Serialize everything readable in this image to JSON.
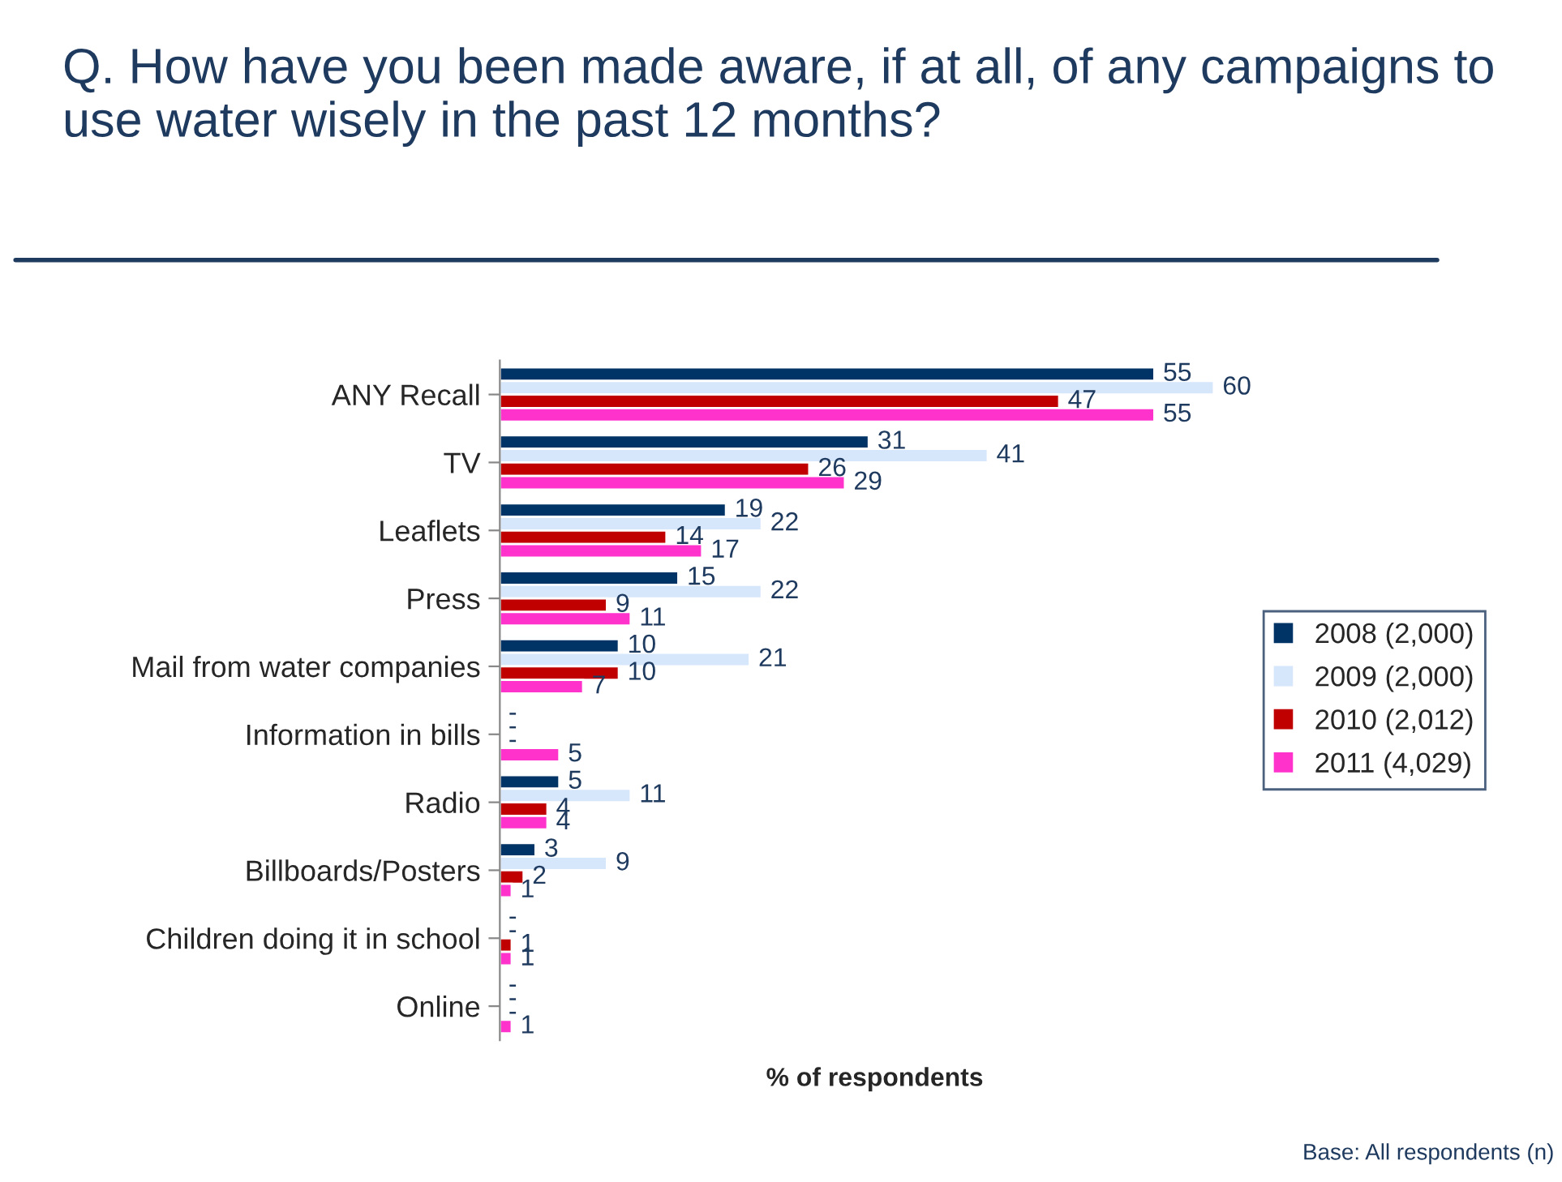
{
  "chart_data": {
    "type": "bar",
    "orientation": "horizontal",
    "title": "Q. How have you been made aware, if at all, of any campaigns to use water wisely in the past 12 months?",
    "xlabel": "% of respondents",
    "categories": [
      "ANY Recall",
      "TV",
      "Leaflets",
      "Press",
      "Mail from water companies",
      "Information in bills",
      "Radio",
      "Billboards/Posters",
      "Children doing it in school",
      "Online"
    ],
    "series": [
      {
        "name": "2008 (2,000)",
        "color": "#003366",
        "values": [
          55,
          31,
          19,
          15,
          10,
          null,
          5,
          3,
          null,
          null
        ],
        "value_labels": [
          "55",
          "31",
          "19",
          "15",
          "10",
          "-",
          "5",
          "3",
          "-",
          "-"
        ]
      },
      {
        "name": "2009 (2,000)",
        "color": "#d6e6fb",
        "values": [
          60,
          41,
          22,
          22,
          21,
          null,
          11,
          9,
          null,
          null
        ],
        "value_labels": [
          "60",
          "41",
          "22",
          "22",
          "21",
          "-",
          "11",
          "9",
          "-",
          "-"
        ]
      },
      {
        "name": "2010 (2,012)",
        "color": "#c00000",
        "values": [
          47,
          26,
          14,
          9,
          10,
          null,
          4,
          2,
          1,
          null
        ],
        "value_labels": [
          "47",
          "26",
          "14",
          "9",
          "10",
          "-",
          "4",
          "2",
          "1",
          "-"
        ]
      },
      {
        "name": "2011 (4,029)",
        "color": "#ff33cc",
        "values": [
          55,
          29,
          17,
          11,
          7,
          5,
          4,
          1,
          1,
          1
        ],
        "value_labels": [
          "55",
          "29",
          "17",
          "11",
          "7",
          "5",
          "4",
          "1",
          "1",
          "1"
        ]
      }
    ],
    "legend": "right",
    "grid": false,
    "tick_labels": "y",
    "annotations": [
      "Base: All respondents (n)"
    ]
  }
}
